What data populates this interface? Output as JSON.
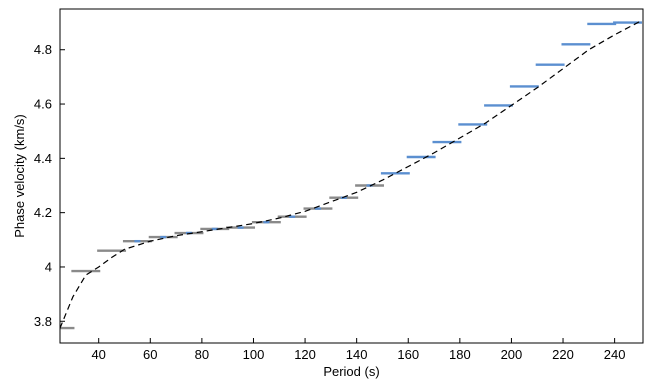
{
  "chart_data": {
    "type": "scatter",
    "title": "",
    "xlabel": "Period (s)",
    "ylabel": "Phase velocity (km/s)",
    "xlim": [
      25,
      251
    ],
    "ylim": [
      3.72,
      4.95
    ],
    "xticks": [
      40,
      60,
      80,
      100,
      120,
      140,
      160,
      180,
      200,
      220,
      240
    ],
    "yticks": [
      3.8,
      4,
      4.2,
      4.4,
      4.6,
      4.8
    ],
    "ytick_labels": [
      "3.8",
      "4",
      "4.2",
      "4.4",
      "4.6",
      "4.8"
    ],
    "grid": false,
    "legend": "none",
    "colors": {
      "measurement": "#8a8a8a",
      "measurement_highlight": "#5b8fd0",
      "model": "#000000"
    },
    "series": [
      {
        "type": "bar_markers",
        "periods": [
          25,
          35,
          45,
          55,
          65,
          75,
          85,
          95,
          105,
          115,
          125,
          135,
          145,
          155,
          165,
          175,
          185,
          195,
          205,
          215,
          225,
          235,
          245
        ],
        "values": [
          3.775,
          3.985,
          4.06,
          4.095,
          4.11,
          4.125,
          4.14,
          4.145,
          4.165,
          4.185,
          4.215,
          4.255,
          4.3,
          4.345,
          4.405,
          4.46,
          4.525,
          4.595,
          4.665,
          4.745,
          4.82,
          4.895,
          4.9
        ]
      },
      {
        "type": "line",
        "style": "dashed",
        "x": [
          25,
          30,
          35,
          40,
          45,
          50,
          60,
          70,
          80,
          90,
          100,
          110,
          120,
          130,
          140,
          150,
          160,
          170,
          180,
          190,
          200,
          210,
          220,
          230,
          240,
          250
        ],
        "y": [
          3.775,
          3.89,
          3.97,
          4.0,
          4.035,
          4.065,
          4.095,
          4.115,
          4.13,
          4.145,
          4.16,
          4.18,
          4.205,
          4.24,
          4.275,
          4.32,
          4.37,
          4.42,
          4.475,
          4.53,
          4.595,
          4.66,
          4.73,
          4.8,
          4.855,
          4.905
        ]
      }
    ]
  }
}
